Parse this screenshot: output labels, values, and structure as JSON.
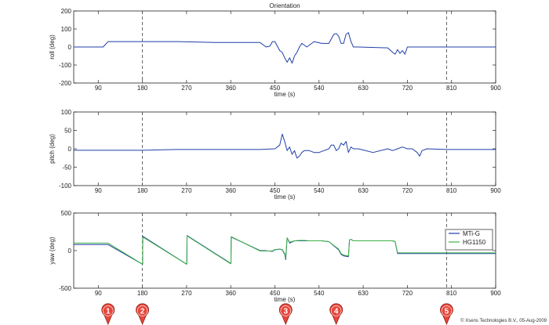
{
  "copyright": "© Xsens Technologies B.V., 05-Aug-2009",
  "colors": {
    "series1": "#1f3fa8",
    "series2": "#3cb043",
    "marker": "#e8463a",
    "dashed": "#555555"
  },
  "chart_data": [
    {
      "type": "line",
      "title": "Orientation",
      "xlabel": "time (s)",
      "ylabel": "roll (deg)",
      "xlim": [
        40,
        900
      ],
      "ylim": [
        -200,
        200
      ],
      "xticks": [
        90,
        180,
        270,
        360,
        450,
        540,
        630,
        720,
        810,
        900
      ],
      "yticks": [
        -200,
        -100,
        0,
        100,
        200
      ],
      "vlines": [
        180,
        800
      ],
      "grid": false,
      "series": [
        {
          "x": [
            40,
            100,
            110,
            180,
            250,
            330,
            420,
            432,
            440,
            445,
            450,
            460,
            465,
            470,
            475,
            480,
            485,
            490,
            495,
            500,
            505,
            515,
            530,
            545,
            560,
            570,
            575,
            580,
            585,
            590,
            595,
            600,
            605,
            610,
            620,
            680,
            690,
            695,
            700,
            705,
            710,
            715,
            720,
            730,
            780,
            800,
            900
          ],
          "y": [
            0,
            0,
            30,
            30,
            30,
            25,
            25,
            0,
            5,
            30,
            30,
            -20,
            -30,
            -60,
            -85,
            -60,
            -90,
            -50,
            -30,
            0,
            20,
            0,
            30,
            20,
            20,
            70,
            75,
            60,
            20,
            20,
            70,
            80,
            30,
            0,
            0,
            -5,
            -30,
            -40,
            -15,
            -35,
            -20,
            -40,
            0,
            0,
            0,
            0,
            0
          ]
        }
      ]
    },
    {
      "type": "line",
      "title": "",
      "xlabel": "time (s)",
      "ylabel": "pitch (deg)",
      "xlim": [
        40,
        900
      ],
      "ylim": [
        -100,
        100
      ],
      "xticks": [
        90,
        180,
        270,
        360,
        450,
        540,
        630,
        720,
        810,
        900
      ],
      "yticks": [
        -100,
        -50,
        0,
        50,
        100
      ],
      "vlines": [
        180,
        800
      ],
      "grid": false,
      "series": [
        {
          "x": [
            40,
            180,
            250,
            330,
            420,
            450,
            460,
            465,
            470,
            475,
            480,
            485,
            490,
            495,
            500,
            505,
            510,
            520,
            530,
            540,
            550,
            560,
            565,
            570,
            575,
            580,
            585,
            590,
            595,
            600,
            605,
            610,
            620,
            650,
            680,
            690,
            700,
            710,
            720,
            730,
            740,
            745,
            750,
            760,
            800,
            900
          ],
          "y": [
            -4,
            -4,
            -2,
            -2,
            -2,
            0,
            10,
            40,
            20,
            -5,
            5,
            -15,
            -5,
            -25,
            -20,
            -10,
            -5,
            -5,
            -10,
            -10,
            -5,
            0,
            10,
            10,
            -5,
            0,
            15,
            10,
            20,
            -10,
            5,
            0,
            0,
            -10,
            0,
            -5,
            0,
            5,
            0,
            0,
            -10,
            -20,
            -5,
            0,
            -2,
            -2
          ]
        }
      ]
    },
    {
      "type": "line",
      "title": "",
      "xlabel": "time (s)",
      "ylabel": "yaw (deg)",
      "xlim": [
        40,
        900
      ],
      "ylim": [
        -500,
        500
      ],
      "xticks": [
        90,
        180,
        270,
        360,
        450,
        540,
        630,
        720,
        810,
        900
      ],
      "yticks": [
        -500,
        0,
        500
      ],
      "vlines": [
        180,
        800
      ],
      "grid": false,
      "legend": {
        "position": "right",
        "entries": [
          "MTi-G",
          "HG1150"
        ]
      },
      "series": [
        {
          "name": "MTi-G",
          "x": [
            40,
            100,
            110,
            180,
            180.5,
            180.8,
            181,
            270,
            270.5,
            271,
            360,
            360.5,
            361,
            420,
            430,
            445,
            450,
            460,
            465,
            470,
            472,
            475,
            480,
            490,
            500,
            510,
            520,
            545,
            560,
            580,
            585,
            590,
            600,
            602,
            605,
            610,
            690,
            695,
            700,
            710,
            720,
            900
          ],
          "y": [
            80,
            80,
            80,
            -180,
            -180,
            190,
            190,
            -180,
            -180,
            200,
            -170,
            -170,
            180,
            0,
            0,
            -10,
            10,
            20,
            10,
            -50,
            -120,
            170,
            100,
            130,
            130,
            130,
            130,
            130,
            120,
            10,
            -50,
            -70,
            -80,
            140,
            150,
            130,
            130,
            120,
            -40,
            -40,
            -40,
            -40
          ]
        },
        {
          "name": "HG1150",
          "x": [
            40,
            100,
            110,
            180,
            180.5,
            180.8,
            181,
            270,
            270.5,
            271,
            360,
            360.5,
            361,
            420,
            430,
            445,
            450,
            460,
            465,
            470,
            472,
            475,
            480,
            490,
            500,
            510,
            520,
            545,
            560,
            580,
            585,
            590,
            600,
            602,
            605,
            610,
            690,
            695,
            700,
            710,
            720,
            900
          ],
          "y": [
            100,
            100,
            100,
            -180,
            -180,
            180,
            180,
            -180,
            -180,
            195,
            -175,
            -175,
            185,
            -5,
            -5,
            -5,
            15,
            20,
            15,
            -40,
            -100,
            170,
            110,
            130,
            135,
            135,
            130,
            130,
            120,
            20,
            -40,
            -60,
            -70,
            140,
            150,
            130,
            130,
            120,
            -30,
            -30,
            -30,
            -30
          ]
        }
      ]
    }
  ],
  "markers": [
    {
      "label": "1",
      "x": 110
    },
    {
      "label": "2",
      "x": 180
    },
    {
      "label": "3",
      "x": 472
    },
    {
      "label": "4",
      "x": 575
    },
    {
      "label": "5",
      "x": 800
    }
  ]
}
